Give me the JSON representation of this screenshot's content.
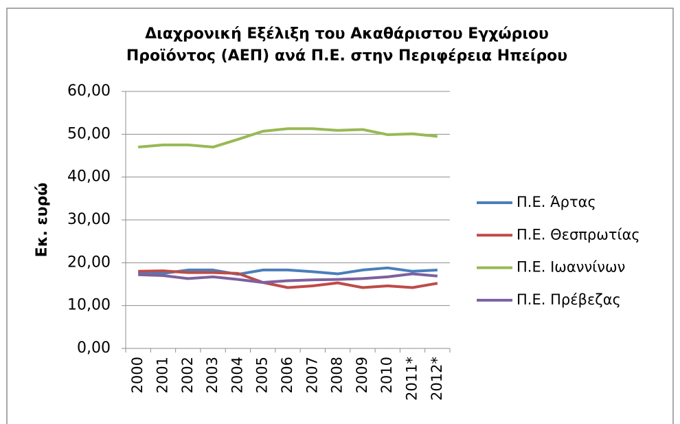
{
  "chart_data": {
    "type": "line",
    "title": "Διαχρονική Εξέλιξη του Ακαθάριστου Εγχώριου\nΠροϊόντος (ΑΕΠ) ανά Π.Ε. στην Περιφέρεια Ηπείρου",
    "y_label": "Εκ. ευρώ",
    "categories": [
      "2000",
      "2001",
      "2002",
      "2003",
      "2004",
      "2005",
      "2006",
      "2007",
      "2008",
      "2009",
      "2010",
      "2011*",
      "2012*"
    ],
    "series": [
      {
        "name": "Π.Ε. Άρτας",
        "color": "#4a7ebb",
        "values": [
          17.5,
          17.5,
          18.3,
          18.3,
          17.3,
          18.3,
          18.3,
          17.9,
          17.4,
          18.3,
          18.8,
          18.0,
          18.3
        ]
      },
      {
        "name": "Π.Ε. Θεσπρωτίας",
        "color": "#be4b48",
        "values": [
          18.0,
          18.1,
          17.7,
          17.7,
          17.5,
          15.4,
          14.2,
          14.6,
          15.3,
          14.2,
          14.6,
          14.2,
          15.2
        ]
      },
      {
        "name": "Π.Ε. Ιωαννίνων",
        "color": "#98b954",
        "values": [
          47.0,
          47.5,
          47.5,
          47.0,
          48.8,
          50.7,
          51.3,
          51.3,
          50.9,
          51.1,
          49.9,
          50.1,
          49.5
        ]
      },
      {
        "name": "Π.Ε. Πρέβεζας",
        "color": "#7d60a0",
        "values": [
          17.2,
          17.0,
          16.3,
          16.7,
          16.1,
          15.4,
          15.8,
          16.0,
          16.1,
          16.3,
          16.7,
          17.4,
          16.9
        ]
      }
    ],
    "ylim": [
      0,
      60
    ],
    "yticks": [
      {
        "value": 0,
        "label": "0,00"
      },
      {
        "value": 10,
        "label": "10,00"
      },
      {
        "value": 20,
        "label": "20,00"
      },
      {
        "value": 30,
        "label": "30,00"
      },
      {
        "value": 40,
        "label": "40,00"
      },
      {
        "value": 50,
        "label": "50,00"
      },
      {
        "value": 60,
        "label": "60,00"
      }
    ],
    "grid": true,
    "legend": "right"
  }
}
